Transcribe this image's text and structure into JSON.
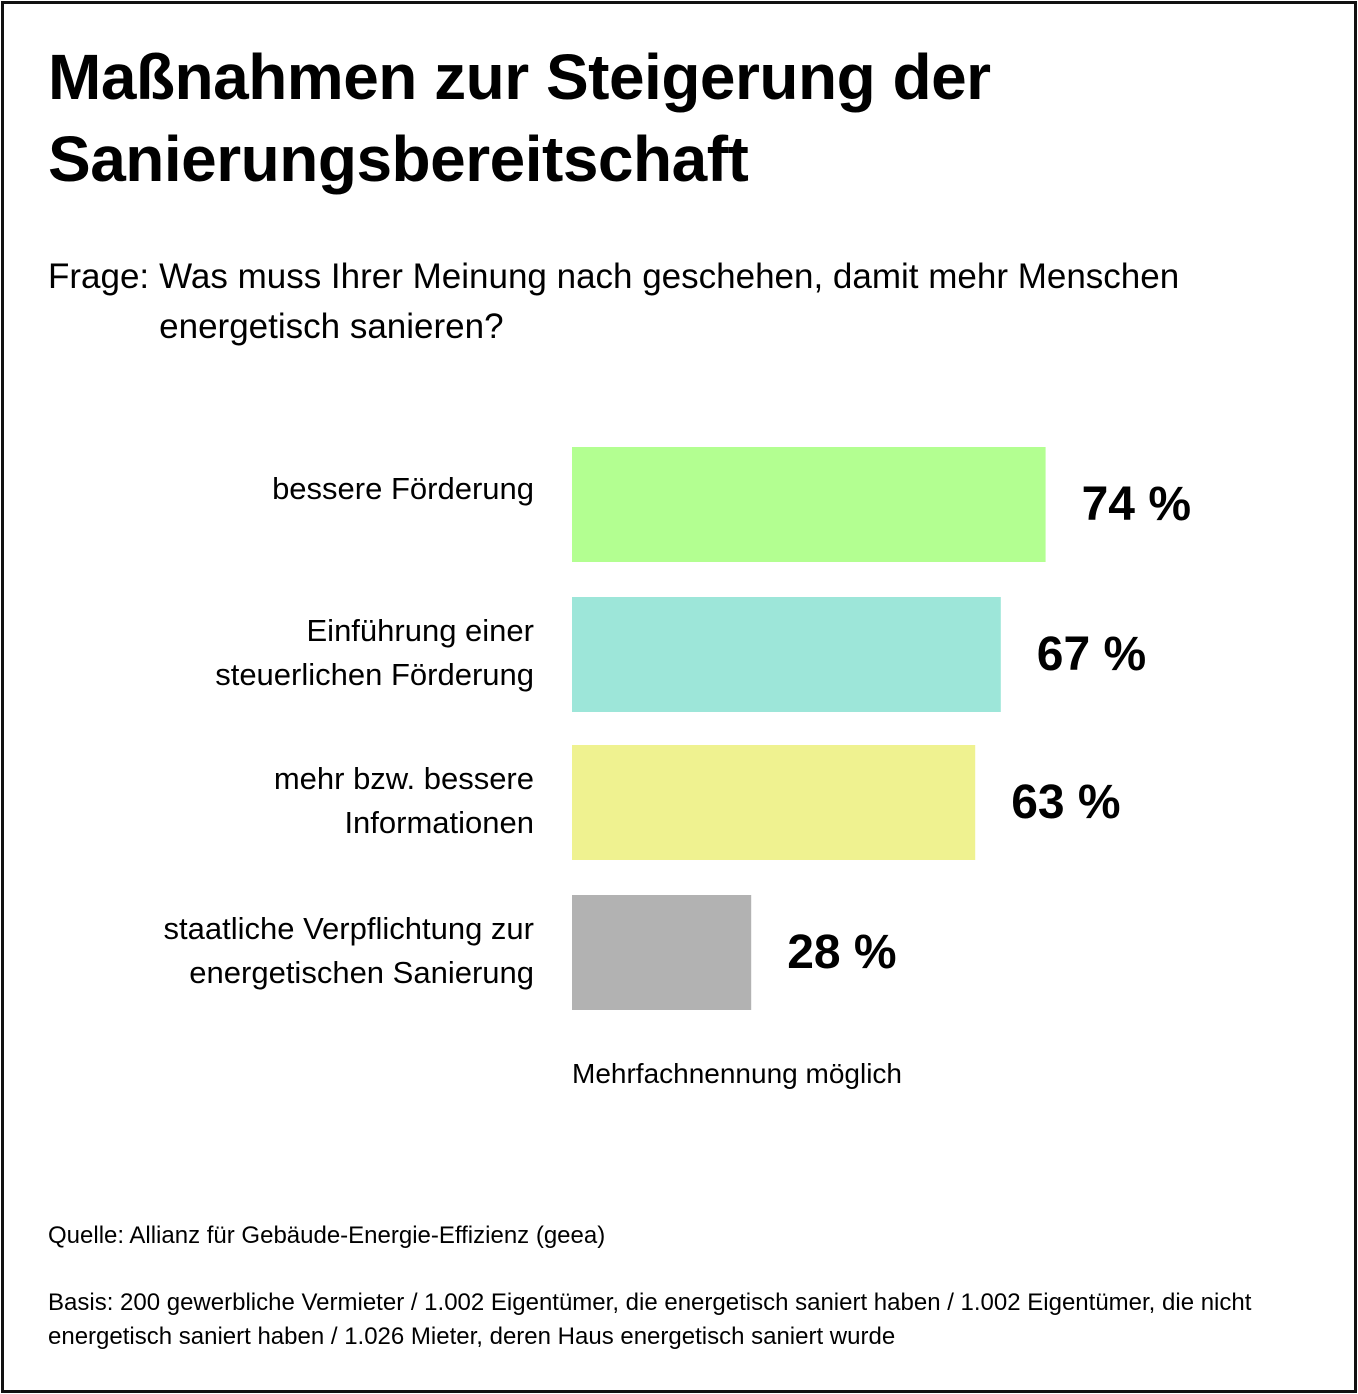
{
  "title_lines": [
    "Maßnahmen zur Steigerung der",
    "Sanierungsbereitschaft"
  ],
  "question": {
    "label": "Frage:",
    "text": "Was muss Ihrer Meinung nach geschehen, damit mehr Menschen energetisch sanieren?"
  },
  "chart_data": {
    "type": "bar",
    "orientation": "horizontal",
    "categories": [
      "bessere Förderung",
      "Einführung einer steuerlichen Förderung",
      "mehr bzw. bessere Informationen",
      "staatliche Verpflichtung zur energetischen Sanierung"
    ],
    "category_lines": [
      [
        "bessere Förderung"
      ],
      [
        "Einführung einer",
        "steuerlichen Förderung"
      ],
      [
        "mehr bzw. bessere",
        "Informationen"
      ],
      [
        "staatliche Verpflichtung zur",
        "energetischen Sanierung"
      ]
    ],
    "values": [
      74,
      67,
      63,
      28
    ],
    "value_labels": [
      "74 %",
      "67 %",
      "63 %",
      "28 %"
    ],
    "colors": [
      "#b3ff91",
      "#9de6d9",
      "#eff290",
      "#b2b2b2"
    ],
    "unit": "%",
    "xlim": [
      0,
      100
    ],
    "grid": false,
    "legend": "none"
  },
  "note": "Mehrfachnennung möglich",
  "source": "Quelle: Allianz für Gebäude-Energie-Effizienz (geea)",
  "basis": "Basis: 200 gewerbliche Vermieter / 1.002 Eigentümer, die energetisch saniert haben / 1.002 Eigentümer, die nicht energetisch saniert haben / 1.026 Mieter, deren Haus energetisch saniert wurde"
}
